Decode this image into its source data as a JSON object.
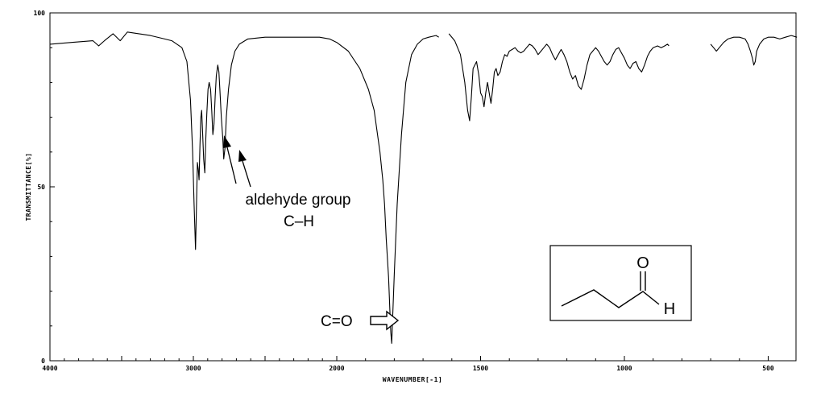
{
  "chart_data": {
    "type": "line",
    "xlabel": "WAVENUMBER[-1]",
    "ylabel": "TRANSMITTANCE[%]",
    "xlim": [
      4000,
      400
    ],
    "ylim": [
      0,
      100
    ],
    "x_ticks": [
      {
        "value": 4000,
        "label": "4000"
      },
      {
        "value": 3000,
        "label": "3000"
      },
      {
        "value": 2000,
        "label": "2000"
      },
      {
        "value": 1500,
        "label": "1500"
      },
      {
        "value": 1000,
        "label": "1000"
      },
      {
        "value": 500,
        "label": "500"
      }
    ],
    "y_ticks": [
      {
        "value": 100,
        "label": "100"
      },
      {
        "value": 50,
        "label": "50"
      },
      {
        "value": 0,
        "label": "0"
      }
    ],
    "series": [
      {
        "segments": [
          [
            [
              4000,
              91
            ],
            [
              3850,
              91.5
            ],
            [
              3700,
              92
            ],
            [
              3660,
              90.5
            ],
            [
              3620,
              92
            ],
            [
              3560,
              94
            ],
            [
              3510,
              92
            ],
            [
              3460,
              94.5
            ],
            [
              3380,
              94
            ],
            [
              3300,
              93.5
            ],
            [
              3200,
              92.5
            ],
            [
              3150,
              92
            ],
            [
              3080,
              90
            ],
            [
              3045,
              86
            ],
            [
              3020,
              75
            ],
            [
              3005,
              60
            ],
            [
              2995,
              45
            ],
            [
              2985,
              32
            ],
            [
              2978,
              45
            ],
            [
              2972,
              57
            ],
            [
              2966,
              55
            ],
            [
              2960,
              52
            ],
            [
              2954,
              62
            ],
            [
              2948,
              70
            ],
            [
              2942,
              72
            ],
            [
              2936,
              66
            ],
            [
              2928,
              58
            ],
            [
              2920,
              54
            ],
            [
              2914,
              63
            ],
            [
              2906,
              71
            ],
            [
              2898,
              78
            ],
            [
              2890,
              80
            ],
            [
              2880,
              78
            ],
            [
              2872,
              72
            ],
            [
              2864,
              65
            ],
            [
              2856,
              68
            ],
            [
              2848,
              76
            ],
            [
              2840,
              82
            ],
            [
              2830,
              85
            ],
            [
              2822,
              83
            ],
            [
              2815,
              78
            ],
            [
              2805,
              70
            ],
            [
              2795,
              64
            ],
            [
              2788,
              58
            ],
            [
              2780,
              61
            ],
            [
              2770,
              70
            ],
            [
              2755,
              78
            ],
            [
              2735,
              85
            ],
            [
              2710,
              89
            ],
            [
              2680,
              91
            ],
            [
              2620,
              92.5
            ],
            [
              2500,
              93
            ],
            [
              2300,
              93
            ],
            [
              2120,
              93
            ],
            [
              2050,
              92.5
            ],
            [
              2000,
              91.5
            ],
            [
              1960,
              89
            ],
            [
              1920,
              84
            ],
            [
              1890,
              78
            ],
            [
              1870,
              72
            ],
            [
              1860,
              66
            ],
            [
              1850,
              60
            ],
            [
              1840,
              52
            ],
            [
              1834,
              45
            ],
            [
              1828,
              35
            ],
            [
              1820,
              24
            ],
            [
              1815,
              14
            ],
            [
              1812,
              8
            ],
            [
              1809,
              5
            ],
            [
              1806,
              12
            ],
            [
              1800,
              25
            ],
            [
              1790,
              45
            ],
            [
              1775,
              65
            ],
            [
              1760,
              80
            ],
            [
              1740,
              88
            ],
            [
              1720,
              91
            ],
            [
              1700,
              92.5
            ],
            [
              1680,
              93
            ],
            [
              1655,
              93.5
            ],
            [
              1645,
              93
            ]
          ],
          [
            [
              1610,
              94
            ],
            [
              1590,
              92
            ],
            [
              1570,
              88
            ],
            [
              1555,
              80
            ],
            [
              1545,
              72
            ],
            [
              1538,
              69
            ],
            [
              1532,
              76
            ],
            [
              1526,
              84
            ],
            [
              1520,
              85
            ],
            [
              1514,
              86
            ],
            [
              1506,
              82
            ],
            [
              1500,
              77
            ],
            [
              1494,
              76
            ],
            [
              1488,
              73
            ],
            [
              1482,
              77
            ],
            [
              1476,
              80
            ],
            [
              1470,
              77
            ],
            [
              1464,
              74
            ],
            [
              1458,
              78
            ],
            [
              1452,
              83
            ],
            [
              1446,
              84
            ],
            [
              1440,
              82
            ],
            [
              1432,
              83
            ],
            [
              1424,
              86
            ],
            [
              1416,
              88
            ],
            [
              1408,
              87.5
            ],
            [
              1400,
              89
            ],
            [
              1390,
              89.5
            ],
            [
              1380,
              90
            ],
            [
              1370,
              89
            ],
            [
              1360,
              88.5
            ],
            [
              1350,
              89
            ],
            [
              1340,
              90
            ],
            [
              1330,
              91
            ],
            [
              1320,
              90.5
            ],
            [
              1310,
              89.5
            ],
            [
              1300,
              88
            ],
            [
              1290,
              89
            ],
            [
              1280,
              90
            ],
            [
              1270,
              91
            ],
            [
              1260,
              90
            ],
            [
              1250,
              88
            ],
            [
              1240,
              86.5
            ],
            [
              1230,
              88
            ],
            [
              1220,
              89.5
            ],
            [
              1210,
              88
            ],
            [
              1200,
              86
            ],
            [
              1190,
              83
            ],
            [
              1180,
              81
            ],
            [
              1170,
              82
            ],
            [
              1160,
              79
            ],
            [
              1150,
              78
            ],
            [
              1140,
              81
            ],
            [
              1130,
              85
            ],
            [
              1120,
              88
            ],
            [
              1110,
              89
            ],
            [
              1100,
              90
            ],
            [
              1090,
              89
            ],
            [
              1080,
              87.5
            ],
            [
              1070,
              86
            ],
            [
              1060,
              85
            ],
            [
              1050,
              86
            ],
            [
              1040,
              88
            ],
            [
              1030,
              89.5
            ],
            [
              1020,
              90
            ],
            [
              1010,
              88.5
            ],
            [
              1000,
              87
            ],
            [
              990,
              85
            ],
            [
              980,
              84
            ],
            [
              970,
              85.5
            ],
            [
              960,
              86
            ],
            [
              950,
              84
            ],
            [
              940,
              83
            ],
            [
              930,
              85
            ],
            [
              920,
              87.5
            ],
            [
              910,
              89
            ],
            [
              900,
              90
            ],
            [
              885,
              90.5
            ],
            [
              872,
              90
            ],
            [
              860,
              90.5
            ],
            [
              850,
              91
            ],
            [
              845,
              90.5
            ]
          ],
          [
            [
              700,
              91
            ],
            [
              690,
              90
            ],
            [
              680,
              89
            ],
            [
              670,
              90
            ],
            [
              655,
              91.5
            ],
            [
              640,
              92.5
            ],
            [
              620,
              93
            ],
            [
              600,
              93
            ],
            [
              580,
              92.5
            ],
            [
              570,
              91
            ],
            [
              562,
              89
            ],
            [
              555,
              87
            ],
            [
              550,
              85
            ],
            [
              545,
              86
            ],
            [
              540,
              89
            ],
            [
              530,
              91
            ],
            [
              515,
              92.5
            ],
            [
              500,
              93
            ],
            [
              480,
              93
            ],
            [
              460,
              92.5
            ],
            [
              440,
              93
            ],
            [
              420,
              93.5
            ],
            [
              400,
              93
            ]
          ]
        ]
      }
    ],
    "annotations": {
      "aldehyde_line1": "aldehyde group",
      "aldehyde_line2": "C–H",
      "carbonyl": "C=O"
    },
    "structure": {
      "atom_o": "O",
      "atom_h": "H"
    },
    "colors": {
      "line": "#000000",
      "background": "#ffffff"
    }
  }
}
